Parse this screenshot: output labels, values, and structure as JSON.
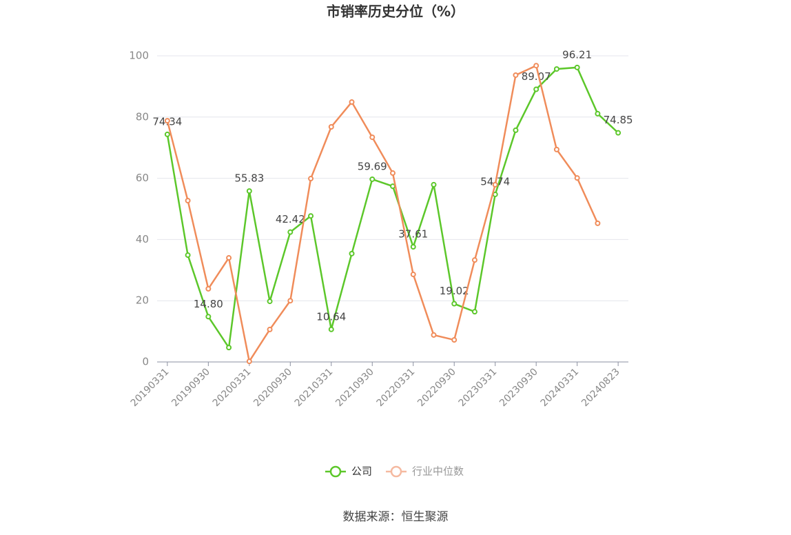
{
  "chart_data": {
    "type": "line",
    "title": "市销率历史分位（%）",
    "source": "数据来源：恒生聚源",
    "categories": [
      "20190331",
      null,
      "20190930",
      null,
      "20200331",
      null,
      "20200930",
      null,
      "20210331",
      null,
      "20210930",
      null,
      "20220331",
      null,
      "20220930",
      null,
      "20230331",
      null,
      "20230930",
      null,
      "20240331",
      null,
      "20240823"
    ],
    "series": [
      {
        "name": "公司",
        "color": "#5cc72a",
        "values": [
          74.34,
          34.9,
          14.8,
          4.7,
          55.83,
          19.8,
          42.42,
          47.7,
          10.64,
          35.4,
          59.69,
          57.4,
          37.61,
          57.9,
          19.02,
          16.4,
          54.74,
          75.7,
          89.07,
          95.7,
          96.21,
          81.1,
          74.85
        ],
        "value_labels": [
          "74.34",
          null,
          "14.80",
          null,
          "55.83",
          null,
          "42.42",
          null,
          "10.64",
          null,
          "59.69",
          null,
          "37.61",
          null,
          "19.02",
          null,
          "54.74",
          null,
          "89.07",
          null,
          "96.21",
          null,
          "74.85"
        ]
      },
      {
        "name": "行业中位数",
        "color": "#f08c5a",
        "values": [
          78.8,
          52.7,
          23.9,
          34.0,
          0.2,
          10.6,
          20.0,
          59.9,
          76.8,
          84.9,
          73.4,
          61.7,
          28.6,
          8.8,
          7.2,
          33.3,
          57.9,
          93.7,
          96.8,
          69.4,
          60.1,
          45.3,
          null
        ]
      }
    ],
    "ylim": [
      0,
      100
    ],
    "yticks": [
      0,
      20,
      40,
      60,
      80,
      100
    ],
    "grid": true,
    "legend": "bottom"
  }
}
